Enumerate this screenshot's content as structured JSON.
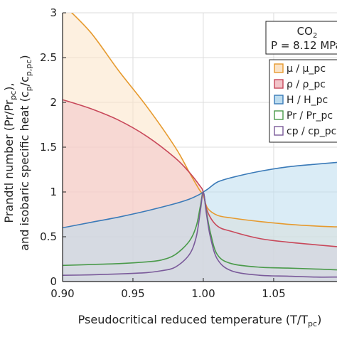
{
  "chart_data": {
    "type": "line",
    "x_label_main": "Pseudocritical reduced temperature (T/T",
    "x_label_sub": "pc",
    "x_label_close": ")",
    "y_label_line1_main": "Prandtl number (Pr/Pr",
    "y_label_line1_sub": "pc",
    "y_label_line1_close": "),",
    "y_label_line2_main": "and isobaric specific heat (c",
    "y_label_line2_sub1": "p",
    "y_label_line2_mid": "/c",
    "y_label_line2_sub2": "p,pc",
    "y_label_line2_close": ")",
    "xlim": [
      0.9,
      1.095
    ],
    "ylim": [
      0,
      3
    ],
    "x_ticks": [
      "0.90",
      "0.95",
      "1.00",
      "1.05"
    ],
    "y_ticks": [
      "0",
      "0.5",
      "1",
      "1.5",
      "2",
      "2.5",
      "3"
    ],
    "grid": true,
    "legend_position": "right",
    "info_box": {
      "line1_main": "CO",
      "line1_sub": "2",
      "line2": "P = 8.12 MPa"
    },
    "series": [
      {
        "name": "μ / μ_pc",
        "color": "#e69a2e",
        "fill": "#fbe3c6",
        "x": [
          0.9,
          0.92,
          0.94,
          0.96,
          0.98,
          0.99,
          0.997,
          1.0,
          1.003,
          1.01,
          1.02,
          1.04,
          1.06,
          1.08,
          1.095
        ],
        "y": [
          3.1,
          2.78,
          2.35,
          1.95,
          1.5,
          1.22,
          1.03,
          0.96,
          0.82,
          0.74,
          0.71,
          0.67,
          0.64,
          0.62,
          0.61
        ]
      },
      {
        "name": "ρ / ρ_pc",
        "color": "#c8485a",
        "fill": "#f2c4c9",
        "x": [
          0.9,
          0.92,
          0.94,
          0.96,
          0.98,
          0.99,
          0.997,
          1.0,
          1.003,
          1.01,
          1.02,
          1.04,
          1.06,
          1.08,
          1.095
        ],
        "y": [
          2.03,
          1.93,
          1.8,
          1.62,
          1.38,
          1.22,
          1.08,
          1.0,
          0.78,
          0.62,
          0.56,
          0.48,
          0.44,
          0.41,
          0.39
        ]
      },
      {
        "name": "H / H_pc",
        "color": "#3a7ab8",
        "fill": "#bcdcef",
        "x": [
          0.9,
          0.92,
          0.94,
          0.96,
          0.98,
          0.99,
          0.997,
          1.0,
          1.003,
          1.01,
          1.02,
          1.04,
          1.06,
          1.08,
          1.095
        ],
        "y": [
          0.6,
          0.66,
          0.72,
          0.79,
          0.87,
          0.92,
          0.97,
          1.0,
          1.03,
          1.11,
          1.16,
          1.23,
          1.28,
          1.31,
          1.33
        ]
      },
      {
        "name": "Pr / Pr_pc",
        "color": "#4a9a4a",
        "fill": "none",
        "x": [
          0.9,
          0.92,
          0.94,
          0.96,
          0.97,
          0.98,
          0.99,
          0.995,
          0.998,
          1.0,
          1.002,
          1.005,
          1.01,
          1.02,
          1.04,
          1.06,
          1.08,
          1.095
        ],
        "y": [
          0.18,
          0.19,
          0.2,
          0.22,
          0.24,
          0.3,
          0.45,
          0.62,
          0.85,
          1.0,
          0.8,
          0.55,
          0.3,
          0.2,
          0.16,
          0.15,
          0.14,
          0.13
        ]
      },
      {
        "name": "cp / cp_pc",
        "color": "#7a5a9a",
        "fill": "none",
        "x": [
          0.9,
          0.92,
          0.94,
          0.96,
          0.97,
          0.98,
          0.99,
          0.995,
          0.998,
          1.0,
          1.002,
          1.005,
          1.01,
          1.02,
          1.04,
          1.06,
          1.08,
          1.095
        ],
        "y": [
          0.07,
          0.075,
          0.085,
          0.1,
          0.12,
          0.16,
          0.3,
          0.5,
          0.8,
          1.0,
          0.78,
          0.5,
          0.25,
          0.12,
          0.07,
          0.06,
          0.05,
          0.05
        ]
      }
    ]
  }
}
